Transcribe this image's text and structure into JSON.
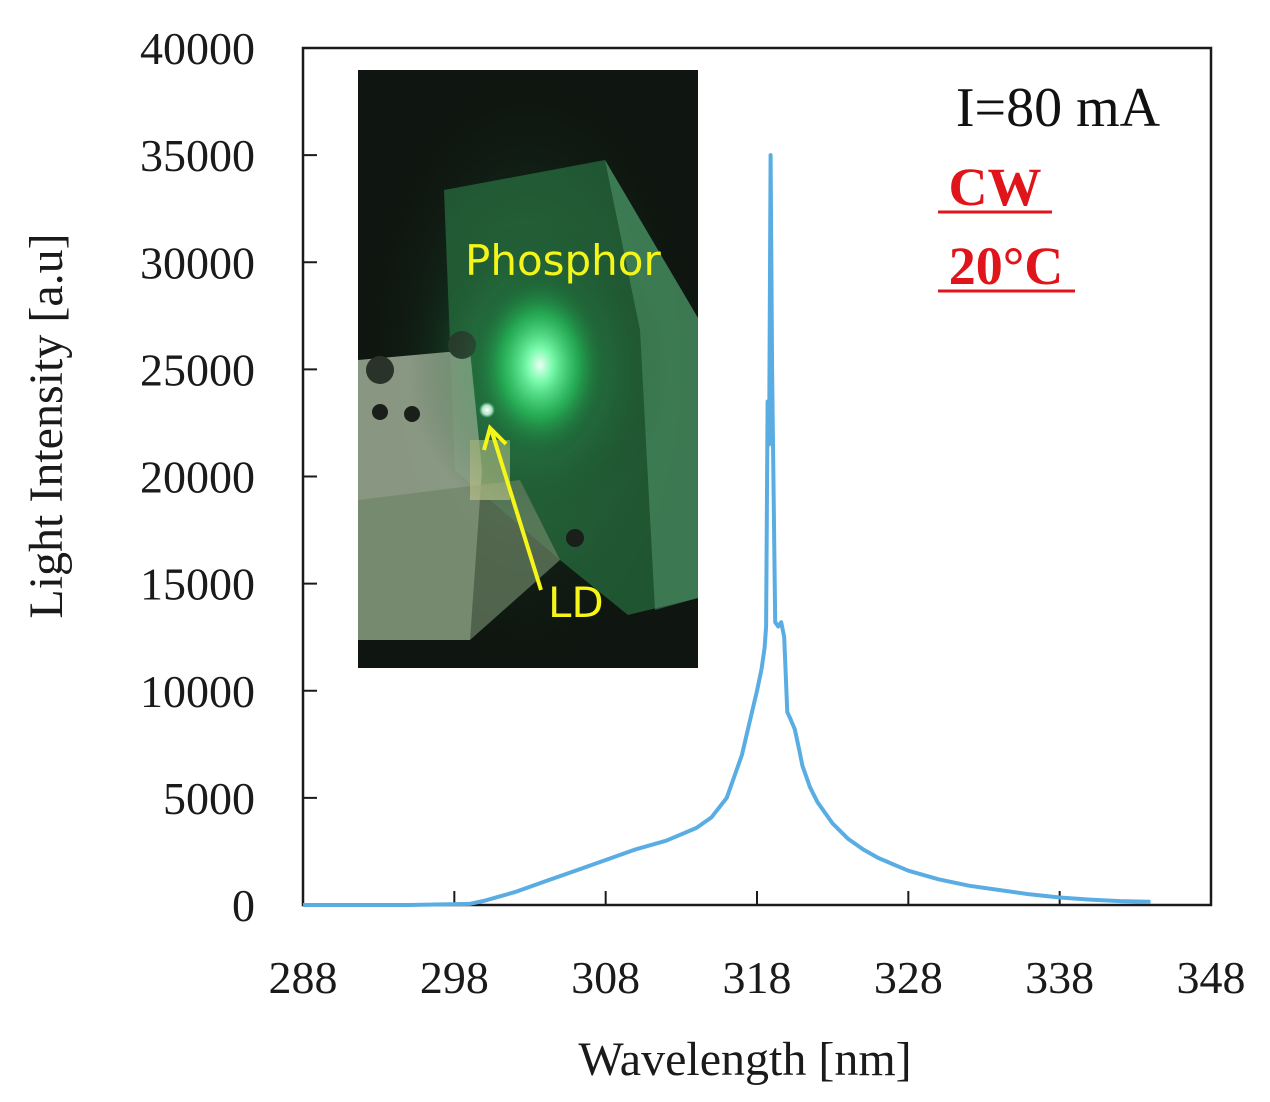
{
  "chart_data": {
    "type": "line",
    "xlabel": "Wavelength [nm]",
    "ylabel": "Light Intensity [a.u]",
    "xlim": [
      288,
      348
    ],
    "ylim": [
      0,
      40000
    ],
    "xticks": [
      "288",
      "298",
      "308",
      "318",
      "328",
      "338",
      "348"
    ],
    "yticks": [
      "0",
      "5000",
      "10000",
      "15000",
      "20000",
      "25000",
      "30000",
      "35000",
      "40000"
    ],
    "grid": false,
    "series": [
      {
        "color": "#5aade3",
        "x": [
          288,
          295,
          299,
          300,
          302,
          304,
          306,
          308,
          310,
          312,
          313,
          314,
          315,
          316,
          316.5,
          317,
          317.5,
          318,
          318.3,
          318.5,
          318.6,
          318.7,
          318.8,
          318.9,
          319.0,
          319.2,
          319.4,
          319.6,
          319.8,
          320.0,
          320.2,
          320.5,
          320.8,
          321.0,
          321.5,
          322,
          323,
          324,
          325,
          326,
          328,
          330,
          332,
          334,
          336,
          338,
          340,
          342,
          344
        ],
        "y": [
          0,
          0,
          50,
          200,
          600,
          1100,
          1600,
          2100,
          2600,
          3000,
          3300,
          3600,
          4100,
          5000,
          6000,
          7000,
          8500,
          10000,
          11000,
          12000,
          13000,
          23500,
          21500,
          35000,
          25000,
          13200,
          13000,
          13200,
          12500,
          9000,
          8700,
          8200,
          7200,
          6500,
          5500,
          4800,
          3800,
          3100,
          2600,
          2200,
          1600,
          1200,
          900,
          700,
          500,
          350,
          250,
          180,
          150
        ]
      }
    ],
    "annotations": [
      "I=80 mA",
      "CW",
      "20°C"
    ]
  },
  "inset_photo": {
    "label_phosphor": "Phosphor",
    "label_ld": "LD"
  }
}
